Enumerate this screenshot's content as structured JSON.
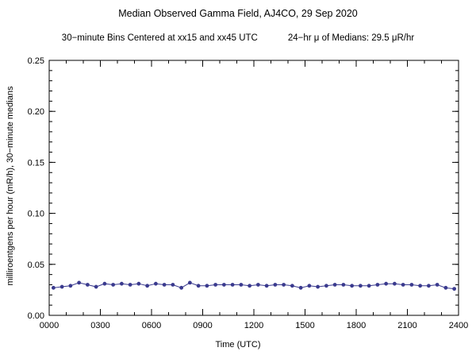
{
  "figure": {
    "title": "Median Observed Gamma Field, AJ4CO, 29 Sep 2020",
    "subtitle_left": "30−minute Bins Centered at xx15 and xx45 UTC",
    "subtitle_right": "24−hr μ of Medians: 29.5 μR/hr"
  },
  "chart_data": {
    "type": "line",
    "title": "Median Observed Gamma Field, AJ4CO, 29 Sep 2020",
    "xlabel": "Time (UTC)",
    "ylabel": "milliroentgens per hour (mR/h), 30−minute medians",
    "xlim": [
      0,
      24
    ],
    "ylim": [
      0,
      0.25
    ],
    "x_major_ticks": [
      0,
      3,
      6,
      9,
      12,
      15,
      18,
      21,
      24
    ],
    "x_tick_labels": [
      "0000",
      "0300",
      "0600",
      "0900",
      "1200",
      "1500",
      "1800",
      "2100",
      "2400"
    ],
    "x_minor_interval": 1,
    "y_major_ticks": [
      0.0,
      0.05,
      0.1,
      0.15,
      0.2,
      0.25
    ],
    "y_tick_labels": [
      "0.00",
      "0.05",
      "0.10",
      "0.15",
      "0.20",
      "0.25"
    ],
    "y_minor_interval": 0.01,
    "line_color": "#3a3a8e",
    "marker_color": "#3a3a8e",
    "x": [
      0.25,
      0.75,
      1.25,
      1.75,
      2.25,
      2.75,
      3.25,
      3.75,
      4.25,
      4.75,
      5.25,
      5.75,
      6.25,
      6.75,
      7.25,
      7.75,
      8.25,
      8.75,
      9.25,
      9.75,
      10.25,
      10.75,
      11.25,
      11.75,
      12.25,
      12.75,
      13.25,
      13.75,
      14.25,
      14.75,
      15.25,
      15.75,
      16.25,
      16.75,
      17.25,
      17.75,
      18.25,
      18.75,
      19.25,
      19.75,
      20.25,
      20.75,
      21.25,
      21.75,
      22.25,
      22.75,
      23.25,
      23.75
    ],
    "values": [
      0.027,
      0.028,
      0.029,
      0.032,
      0.03,
      0.028,
      0.031,
      0.03,
      0.031,
      0.03,
      0.031,
      0.029,
      0.031,
      0.03,
      0.03,
      0.027,
      0.032,
      0.029,
      0.029,
      0.03,
      0.03,
      0.03,
      0.03,
      0.029,
      0.03,
      0.029,
      0.03,
      0.03,
      0.029,
      0.027,
      0.029,
      0.028,
      0.029,
      0.03,
      0.03,
      0.029,
      0.029,
      0.029,
      0.03,
      0.031,
      0.031,
      0.03,
      0.03,
      0.029,
      0.029,
      0.03,
      0.027,
      0.026
    ]
  }
}
